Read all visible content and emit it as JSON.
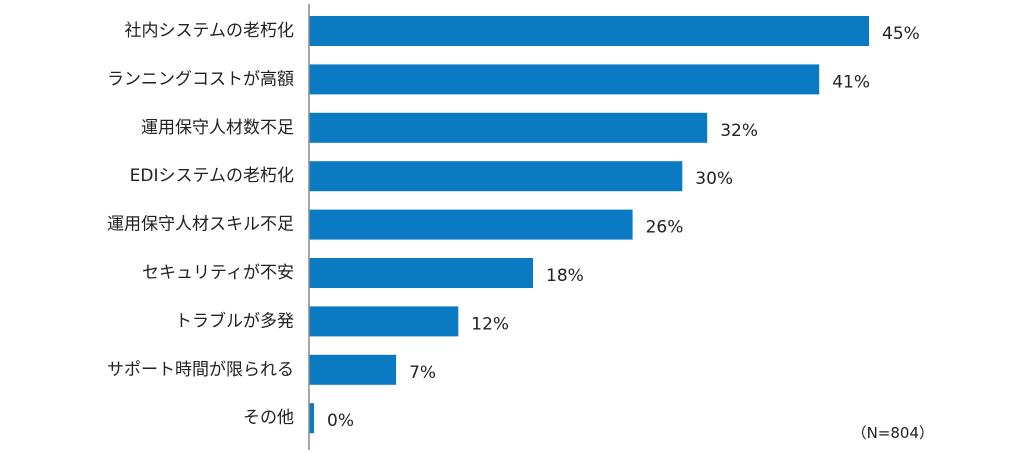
{
  "chart_data": {
    "type": "bar",
    "orientation": "horizontal",
    "title": "",
    "xlabel": "",
    "ylabel": "",
    "xlim": [
      0,
      50
    ],
    "grid": false,
    "value_suffix": "%",
    "bar_color": "#0a7bc2",
    "axis_color": "#8c8c8c",
    "categories": [
      "社内システムの老朽化",
      "ランニングコストが高額",
      "運用保守人材数不足",
      "EDIシステムの老朽化",
      "運用保守人材スキル不足",
      "セキュリティが不安",
      "トラブルが多発",
      "サポート時間が限られる",
      "その他"
    ],
    "values": [
      45,
      41,
      32,
      30,
      26,
      18,
      12,
      7,
      0
    ],
    "value_labels": [
      "45%",
      "41%",
      "32%",
      "30%",
      "26%",
      "18%",
      "12%",
      "7%",
      "0%"
    ],
    "note": "（N=804）"
  }
}
